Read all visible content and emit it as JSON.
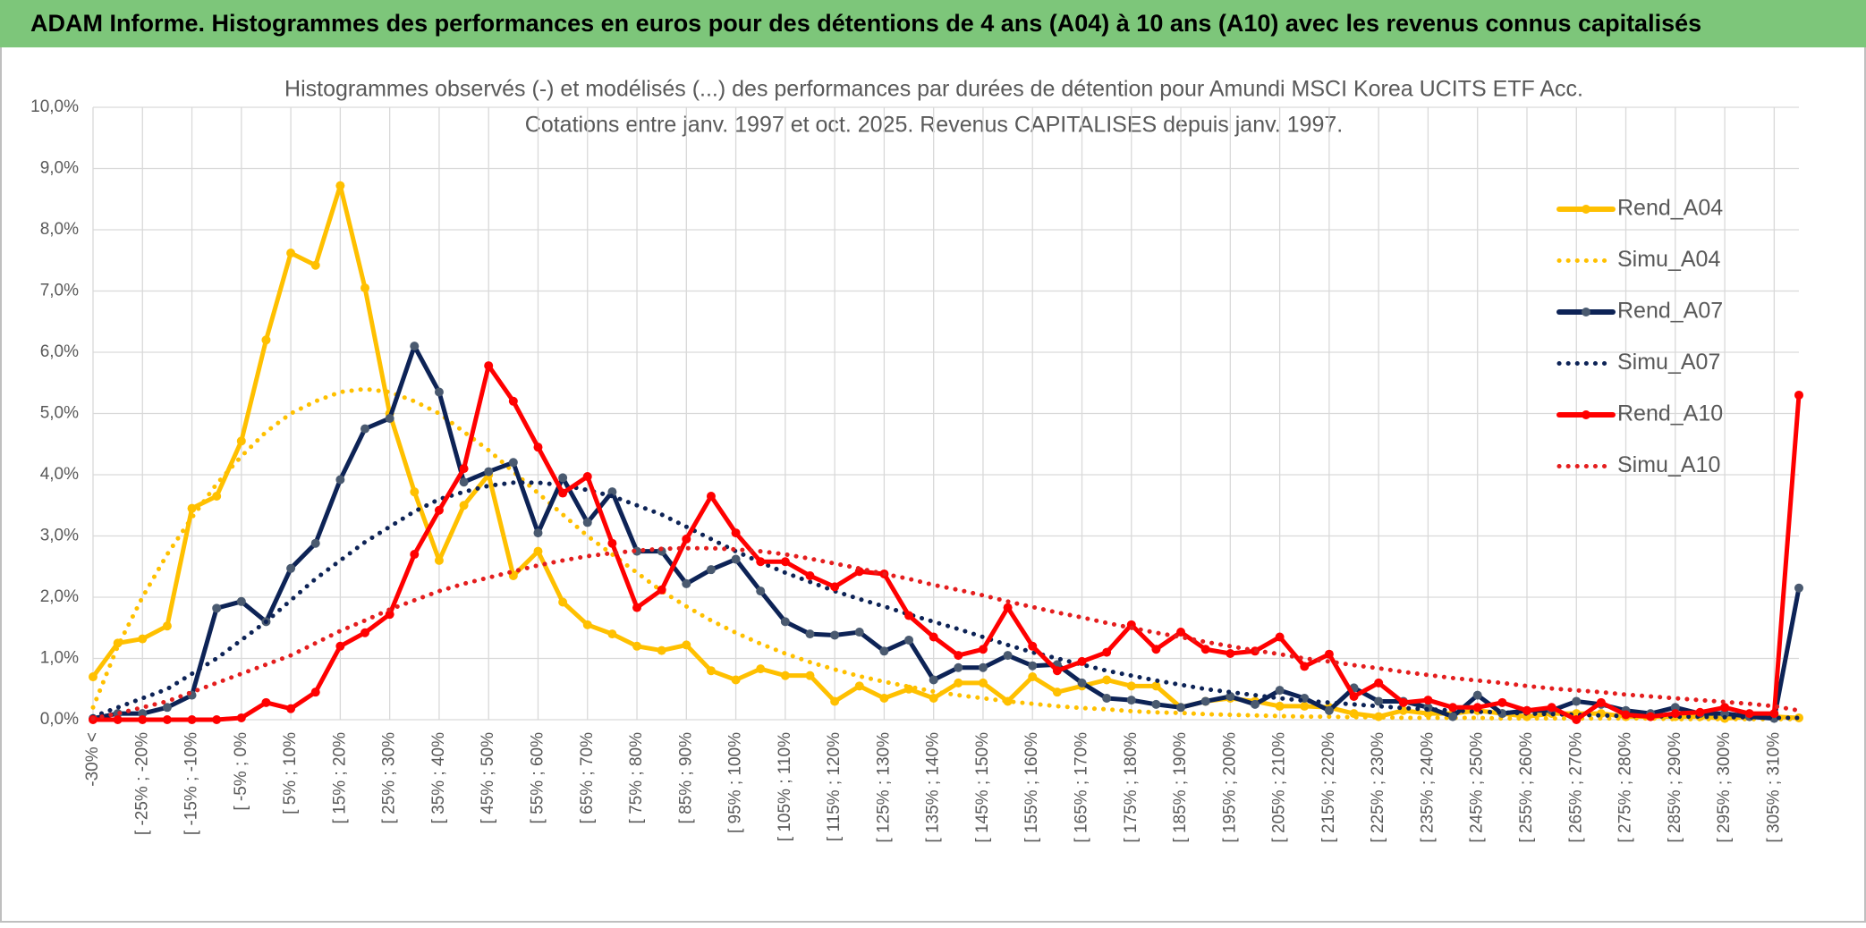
{
  "header": {
    "title": "ADAM Informe. Histogrammes des performances en euros pour des détentions de 4 ans (A04) à 10 ans (A10) avec les revenus connus capitalisés"
  },
  "chart_data": {
    "type": "line",
    "title": "Histogrammes observés (-) et modélisés (...) des performances par durées de détention pour Amundi MSCI Korea UCITS ETF Acc.",
    "subtitle": "Cotations entre janv. 1997 et oct. 2025. Revenus CAPITALISES depuis janv. 1997.",
    "categories": [
      "-30% <",
      null,
      "[ -25% ; -20%",
      null,
      "[ -15% ; -10%",
      null,
      "[ -5% ; 0%",
      null,
      "[ 5% ; 10%",
      null,
      "[ 15% ; 20%",
      null,
      "[ 25% ; 30%",
      null,
      "[ 35% ; 40%",
      null,
      "[ 45% ; 50%",
      null,
      "[ 55% ; 60%",
      null,
      "[ 65% ; 70%",
      null,
      "[ 75% ; 80%",
      null,
      "[ 85% ; 90%",
      null,
      "[ 95% ; 100%",
      null,
      "[ 105% ; 110%",
      null,
      "[ 115% ; 120%",
      null,
      "[ 125% ; 130%",
      null,
      "[ 135% ; 140%",
      null,
      "[ 145% ; 150%",
      null,
      "[ 155% ; 160%",
      null,
      "[ 165% ; 170%",
      null,
      "[ 175% ; 180%",
      null,
      "[ 185% ; 190%",
      null,
      "[ 195% ; 200%",
      null,
      "[ 205% ; 210%",
      null,
      "[ 215% ; 220%",
      null,
      "[ 225% ; 230%",
      null,
      "[ 235% ; 240%",
      null,
      "[ 245% ; 250%",
      null,
      "[ 255% ; 260%",
      null,
      "[ 265% ; 270%",
      null,
      "[ 275% ; 280%",
      null,
      "[ 285% ; 290%",
      null,
      "[ 295% ; 300%",
      null,
      "[ 305% ; 310%",
      null
    ],
    "ylim": [
      0,
      10
    ],
    "yticks": [
      {
        "value": 0,
        "label": "0,0%"
      },
      {
        "value": 1,
        "label": "1,0%"
      },
      {
        "value": 2,
        "label": "2,0%"
      },
      {
        "value": 3,
        "label": "3,0%"
      },
      {
        "value": 4,
        "label": "4,0%"
      },
      {
        "value": 5,
        "label": "5,0%"
      },
      {
        "value": 6,
        "label": "6,0%"
      },
      {
        "value": 7,
        "label": "7,0%"
      },
      {
        "value": 8,
        "label": "8,0%"
      },
      {
        "value": 9,
        "label": "9,0%"
      },
      {
        "value": 10,
        "label": "10,0%"
      }
    ],
    "grid": true,
    "legend": "right",
    "series": [
      {
        "name": "Rend_A04",
        "color": "#FFC000",
        "style": "solid",
        "marker": true,
        "marker_color": "#FFC000",
        "values": [
          0.7,
          1.25,
          1.32,
          1.53,
          3.45,
          3.65,
          4.55,
          6.2,
          7.62,
          7.42,
          8.72,
          7.05,
          5.0,
          3.72,
          2.6,
          3.5,
          4.0,
          2.35,
          2.75,
          1.92,
          1.55,
          1.4,
          1.2,
          1.13,
          1.22,
          0.8,
          0.65,
          0.83,
          0.72,
          0.72,
          0.3,
          0.55,
          0.35,
          0.5,
          0.35,
          0.6,
          0.6,
          0.3,
          0.7,
          0.45,
          0.55,
          0.65,
          0.55,
          0.55,
          0.2,
          0.3,
          0.35,
          0.3,
          0.22,
          0.22,
          0.2,
          0.1,
          0.05,
          0.15,
          0.1,
          0.1,
          0.15,
          0.1,
          0.05,
          0.1,
          0.1,
          0.1,
          0.05,
          0.05,
          0.05,
          0.05,
          0.02,
          0.05,
          0.05,
          0.03
        ]
      },
      {
        "name": "Simu_A04",
        "color": "#FFC000",
        "style": "dotted",
        "marker": false,
        "values": [
          0.2,
          1.2,
          2.0,
          2.7,
          3.3,
          3.85,
          4.3,
          4.7,
          5.0,
          5.2,
          5.35,
          5.4,
          5.35,
          5.2,
          5.0,
          4.7,
          4.4,
          4.05,
          3.7,
          3.35,
          3.0,
          2.7,
          2.4,
          2.1,
          1.85,
          1.62,
          1.42,
          1.24,
          1.08,
          0.94,
          0.82,
          0.71,
          0.62,
          0.54,
          0.46,
          0.4,
          0.35,
          0.3,
          0.26,
          0.22,
          0.19,
          0.17,
          0.14,
          0.12,
          0.11,
          0.09,
          0.08,
          0.07,
          0.06,
          0.05,
          0.05,
          0.04,
          0.04,
          0.03,
          0.03,
          0.03,
          0.03,
          0.02,
          0.02,
          0.02,
          0.02,
          0.02,
          0.02,
          0.02,
          0.01,
          0.01,
          0.01,
          0.01,
          0.01,
          0.01
        ]
      },
      {
        "name": "Rend_A07",
        "color": "#0D2356",
        "style": "solid",
        "marker": true,
        "marker_color": "#4A5A70",
        "values": [
          0.02,
          0.1,
          0.1,
          0.2,
          0.4,
          1.82,
          1.93,
          1.6,
          2.47,
          2.88,
          3.92,
          4.75,
          4.92,
          6.1,
          5.35,
          3.88,
          4.05,
          4.2,
          3.05,
          3.95,
          3.22,
          3.72,
          2.75,
          2.75,
          2.22,
          2.45,
          2.62,
          2.1,
          1.6,
          1.4,
          1.38,
          1.43,
          1.12,
          1.3,
          0.65,
          0.85,
          0.85,
          1.05,
          0.88,
          0.9,
          0.6,
          0.35,
          0.32,
          0.25,
          0.2,
          0.3,
          0.38,
          0.25,
          0.48,
          0.35,
          0.15,
          0.52,
          0.3,
          0.3,
          0.2,
          0.05,
          0.4,
          0.1,
          0.15,
          0.15,
          0.3,
          0.25,
          0.15,
          0.1,
          0.2,
          0.1,
          0.1,
          0.05,
          0.02,
          2.15
        ]
      },
      {
        "name": "Simu_A07",
        "color": "#0D2356",
        "style": "dotted",
        "marker": false,
        "values": [
          0.05,
          0.2,
          0.35,
          0.5,
          0.75,
          1.0,
          1.3,
          1.6,
          1.95,
          2.3,
          2.6,
          2.9,
          3.15,
          3.4,
          3.6,
          3.72,
          3.82,
          3.87,
          3.87,
          3.83,
          3.75,
          3.65,
          3.5,
          3.35,
          3.15,
          2.95,
          2.75,
          2.57,
          2.4,
          2.25,
          2.1,
          1.97,
          1.85,
          1.72,
          1.6,
          1.48,
          1.35,
          1.22,
          1.1,
          1.0,
          0.9,
          0.8,
          0.72,
          0.64,
          0.57,
          0.5,
          0.45,
          0.4,
          0.35,
          0.31,
          0.28,
          0.25,
          0.22,
          0.19,
          0.17,
          0.15,
          0.13,
          0.12,
          0.1,
          0.09,
          0.08,
          0.07,
          0.06,
          0.06,
          0.05,
          0.05,
          0.04,
          0.04,
          0.03,
          0.03
        ]
      },
      {
        "name": "Rend_A10",
        "color": "#FF0000",
        "style": "solid",
        "marker": true,
        "marker_color": "#FF0000",
        "values": [
          0,
          0,
          0,
          0,
          0,
          0,
          0.03,
          0.28,
          0.18,
          0.45,
          1.2,
          1.42,
          1.72,
          2.7,
          3.42,
          4.1,
          5.78,
          5.2,
          4.45,
          3.7,
          3.97,
          2.88,
          1.83,
          2.12,
          2.95,
          3.65,
          3.05,
          2.58,
          2.58,
          2.35,
          2.17,
          2.42,
          2.38,
          1.7,
          1.35,
          1.05,
          1.15,
          1.83,
          1.2,
          0.8,
          0.95,
          1.1,
          1.55,
          1.15,
          1.43,
          1.15,
          1.08,
          1.12,
          1.35,
          0.87,
          1.07,
          0.38,
          0.6,
          0.28,
          0.32,
          0.2,
          0.2,
          0.28,
          0.15,
          0.2,
          0.0,
          0.28,
          0.08,
          0.05,
          0.1,
          0.12,
          0.2,
          0.1,
          0.1,
          5.3
        ]
      },
      {
        "name": "Simu_A10",
        "color": "#E41E1E",
        "style": "dotted",
        "marker": false,
        "values": [
          0.02,
          0.1,
          0.2,
          0.3,
          0.45,
          0.6,
          0.75,
          0.9,
          1.05,
          1.25,
          1.45,
          1.62,
          1.8,
          1.95,
          2.1,
          2.22,
          2.32,
          2.42,
          2.52,
          2.6,
          2.67,
          2.72,
          2.76,
          2.79,
          2.8,
          2.8,
          2.78,
          2.75,
          2.7,
          2.63,
          2.55,
          2.47,
          2.38,
          2.3,
          2.2,
          2.12,
          2.03,
          1.93,
          1.84,
          1.75,
          1.67,
          1.58,
          1.5,
          1.42,
          1.35,
          1.27,
          1.2,
          1.13,
          1.07,
          1.0,
          0.95,
          0.89,
          0.84,
          0.78,
          0.73,
          0.68,
          0.64,
          0.6,
          0.55,
          0.51,
          0.48,
          0.45,
          0.41,
          0.38,
          0.35,
          0.32,
          0.29,
          0.26,
          0.22,
          0.15
        ]
      }
    ]
  }
}
